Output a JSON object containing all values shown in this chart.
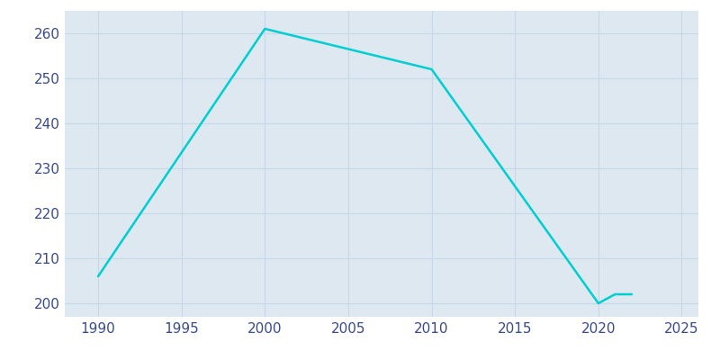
{
  "years": [
    1990,
    2000,
    2010,
    2020,
    2021,
    2022
  ],
  "population": [
    206,
    261,
    252,
    200,
    202,
    202
  ],
  "line_color": "#00CED1",
  "plot_bg_color": "#dde8f0",
  "outer_bg_color": "#ffffff",
  "grid_color": "#c8d8e8",
  "xlabel": "",
  "ylabel": "",
  "xlim": [
    1988,
    2026
  ],
  "ylim": [
    197,
    265
  ],
  "xticks": [
    1990,
    1995,
    2000,
    2005,
    2010,
    2015,
    2020,
    2025
  ],
  "yticks": [
    200,
    210,
    220,
    230,
    240,
    250,
    260
  ],
  "line_width": 1.8,
  "figsize": [
    8.0,
    4.0
  ],
  "dpi": 100,
  "tick_color": "#3a4a8a",
  "tick_fontsize": 11
}
